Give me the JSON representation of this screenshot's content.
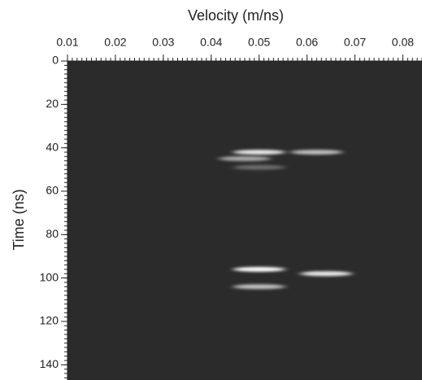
{
  "chart_data": {
    "type": "heatmap",
    "x_label": "Velocity (m/ns)",
    "y_label": "Time (ns)",
    "xlim": [
      0.01,
      0.084
    ],
    "ylim": [
      0,
      147
    ],
    "xticks": [
      0.01,
      0.02,
      0.03,
      0.04,
      0.05,
      0.06,
      0.07,
      0.08
    ],
    "yticks": [
      0,
      20,
      40,
      60,
      80,
      100,
      120,
      140
    ],
    "y_inverted": true,
    "background": "#2b2b2b",
    "color": "#ffffff",
    "x": [
      0.05,
      0.062,
      0.047,
      0.05,
      0.05,
      0.064,
      0.05
    ],
    "y": [
      42,
      42,
      45,
      49,
      96,
      98,
      104
    ],
    "values": [
      0.9,
      0.7,
      0.6,
      0.3,
      1.0,
      0.9,
      0.7
    ]
  }
}
